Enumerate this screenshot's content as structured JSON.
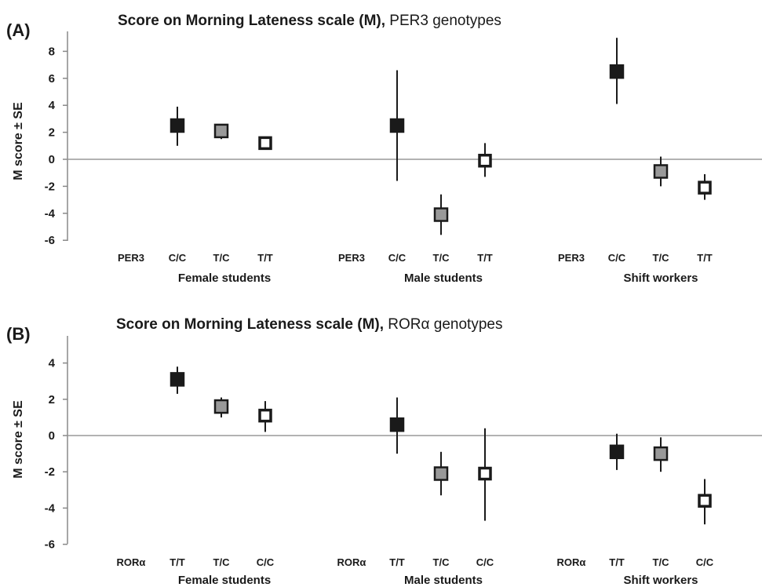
{
  "chart_data": [
    {
      "type": "scatter",
      "panel_label": "(A)",
      "title_bold": "Score on Morning Lateness scale (M),",
      "title_rest": " PER3 genotypes",
      "ylabel": "M score ± SE",
      "ylim": [
        -6,
        9
      ],
      "yticks": [
        -6,
        -4,
        -2,
        0,
        2,
        4,
        6,
        8
      ],
      "grid": false,
      "zero_line": true,
      "groups": [
        {
          "name": "Female students",
          "gene_label": "PER3",
          "points": [
            {
              "genotype": "C/C",
              "mean": 2.5,
              "se_low": 1.0,
              "se_high": 3.9,
              "fill": "#1a1a1a"
            },
            {
              "genotype": "T/C",
              "mean": 2.1,
              "se_low": 1.5,
              "se_high": 2.6,
              "fill": "#999999"
            },
            {
              "genotype": "T/T",
              "mean": 1.2,
              "se_low": 0.7,
              "se_high": 1.6,
              "fill": "#ffffff"
            }
          ]
        },
        {
          "name": "Male students",
          "gene_label": "PER3",
          "points": [
            {
              "genotype": "C/C",
              "mean": 2.5,
              "se_low": -1.6,
              "se_high": 6.6,
              "fill": "#1a1a1a"
            },
            {
              "genotype": "T/C",
              "mean": -4.1,
              "se_low": -5.6,
              "se_high": -2.6,
              "fill": "#999999"
            },
            {
              "genotype": "T/T",
              "mean": -0.1,
              "se_low": -1.3,
              "se_high": 1.2,
              "fill": "#ffffff"
            }
          ]
        },
        {
          "name": "Shift workers",
          "gene_label": "PER3",
          "points": [
            {
              "genotype": "C/C",
              "mean": 6.5,
              "se_low": 4.1,
              "se_high": 9.0,
              "fill": "#1a1a1a"
            },
            {
              "genotype": "T/C",
              "mean": -0.9,
              "se_low": -2.0,
              "se_high": 0.2,
              "fill": "#999999"
            },
            {
              "genotype": "T/T",
              "mean": -2.1,
              "se_low": -3.0,
              "se_high": -1.1,
              "fill": "#ffffff"
            }
          ]
        }
      ]
    },
    {
      "type": "scatter",
      "panel_label": "(B)",
      "title_bold": "Score on Morning Lateness scale (M),",
      "title_rest": " RORα genotypes",
      "ylabel": "M score ± SE",
      "ylim": [
        -6,
        5.5
      ],
      "yticks": [
        -6,
        -4,
        -2,
        0,
        2,
        4
      ],
      "grid": false,
      "zero_line": true,
      "groups": [
        {
          "name": "Female students",
          "gene_label": "RORα",
          "points": [
            {
              "genotype": "T/T",
              "mean": 3.1,
              "se_low": 2.3,
              "se_high": 3.8,
              "fill": "#1a1a1a"
            },
            {
              "genotype": "T/C",
              "mean": 1.6,
              "se_low": 1.0,
              "se_high": 2.1,
              "fill": "#999999"
            },
            {
              "genotype": "C/C",
              "mean": 1.1,
              "se_low": 0.2,
              "se_high": 1.9,
              "fill": "#ffffff"
            }
          ]
        },
        {
          "name": "Male students",
          "gene_label": "RORα",
          "points": [
            {
              "genotype": "T/T",
              "mean": 0.6,
              "se_low": -1.0,
              "se_high": 2.1,
              "fill": "#1a1a1a"
            },
            {
              "genotype": "T/C",
              "mean": -2.1,
              "se_low": -3.3,
              "se_high": -0.9,
              "fill": "#999999"
            },
            {
              "genotype": "C/C",
              "mean": -2.1,
              "se_low": -4.7,
              "se_high": 0.4,
              "fill": "#ffffff"
            }
          ]
        },
        {
          "name": "Shift workers",
          "gene_label": "RORα",
          "points": [
            {
              "genotype": "T/T",
              "mean": -0.9,
              "se_low": -1.9,
              "se_high": 0.1,
              "fill": "#1a1a1a"
            },
            {
              "genotype": "T/C",
              "mean": -1.0,
              "se_low": -2.0,
              "se_high": -0.1,
              "fill": "#999999"
            },
            {
              "genotype": "C/C",
              "mean": -3.6,
              "se_low": -4.9,
              "se_high": -2.4,
              "fill": "#ffffff"
            }
          ]
        }
      ]
    }
  ]
}
